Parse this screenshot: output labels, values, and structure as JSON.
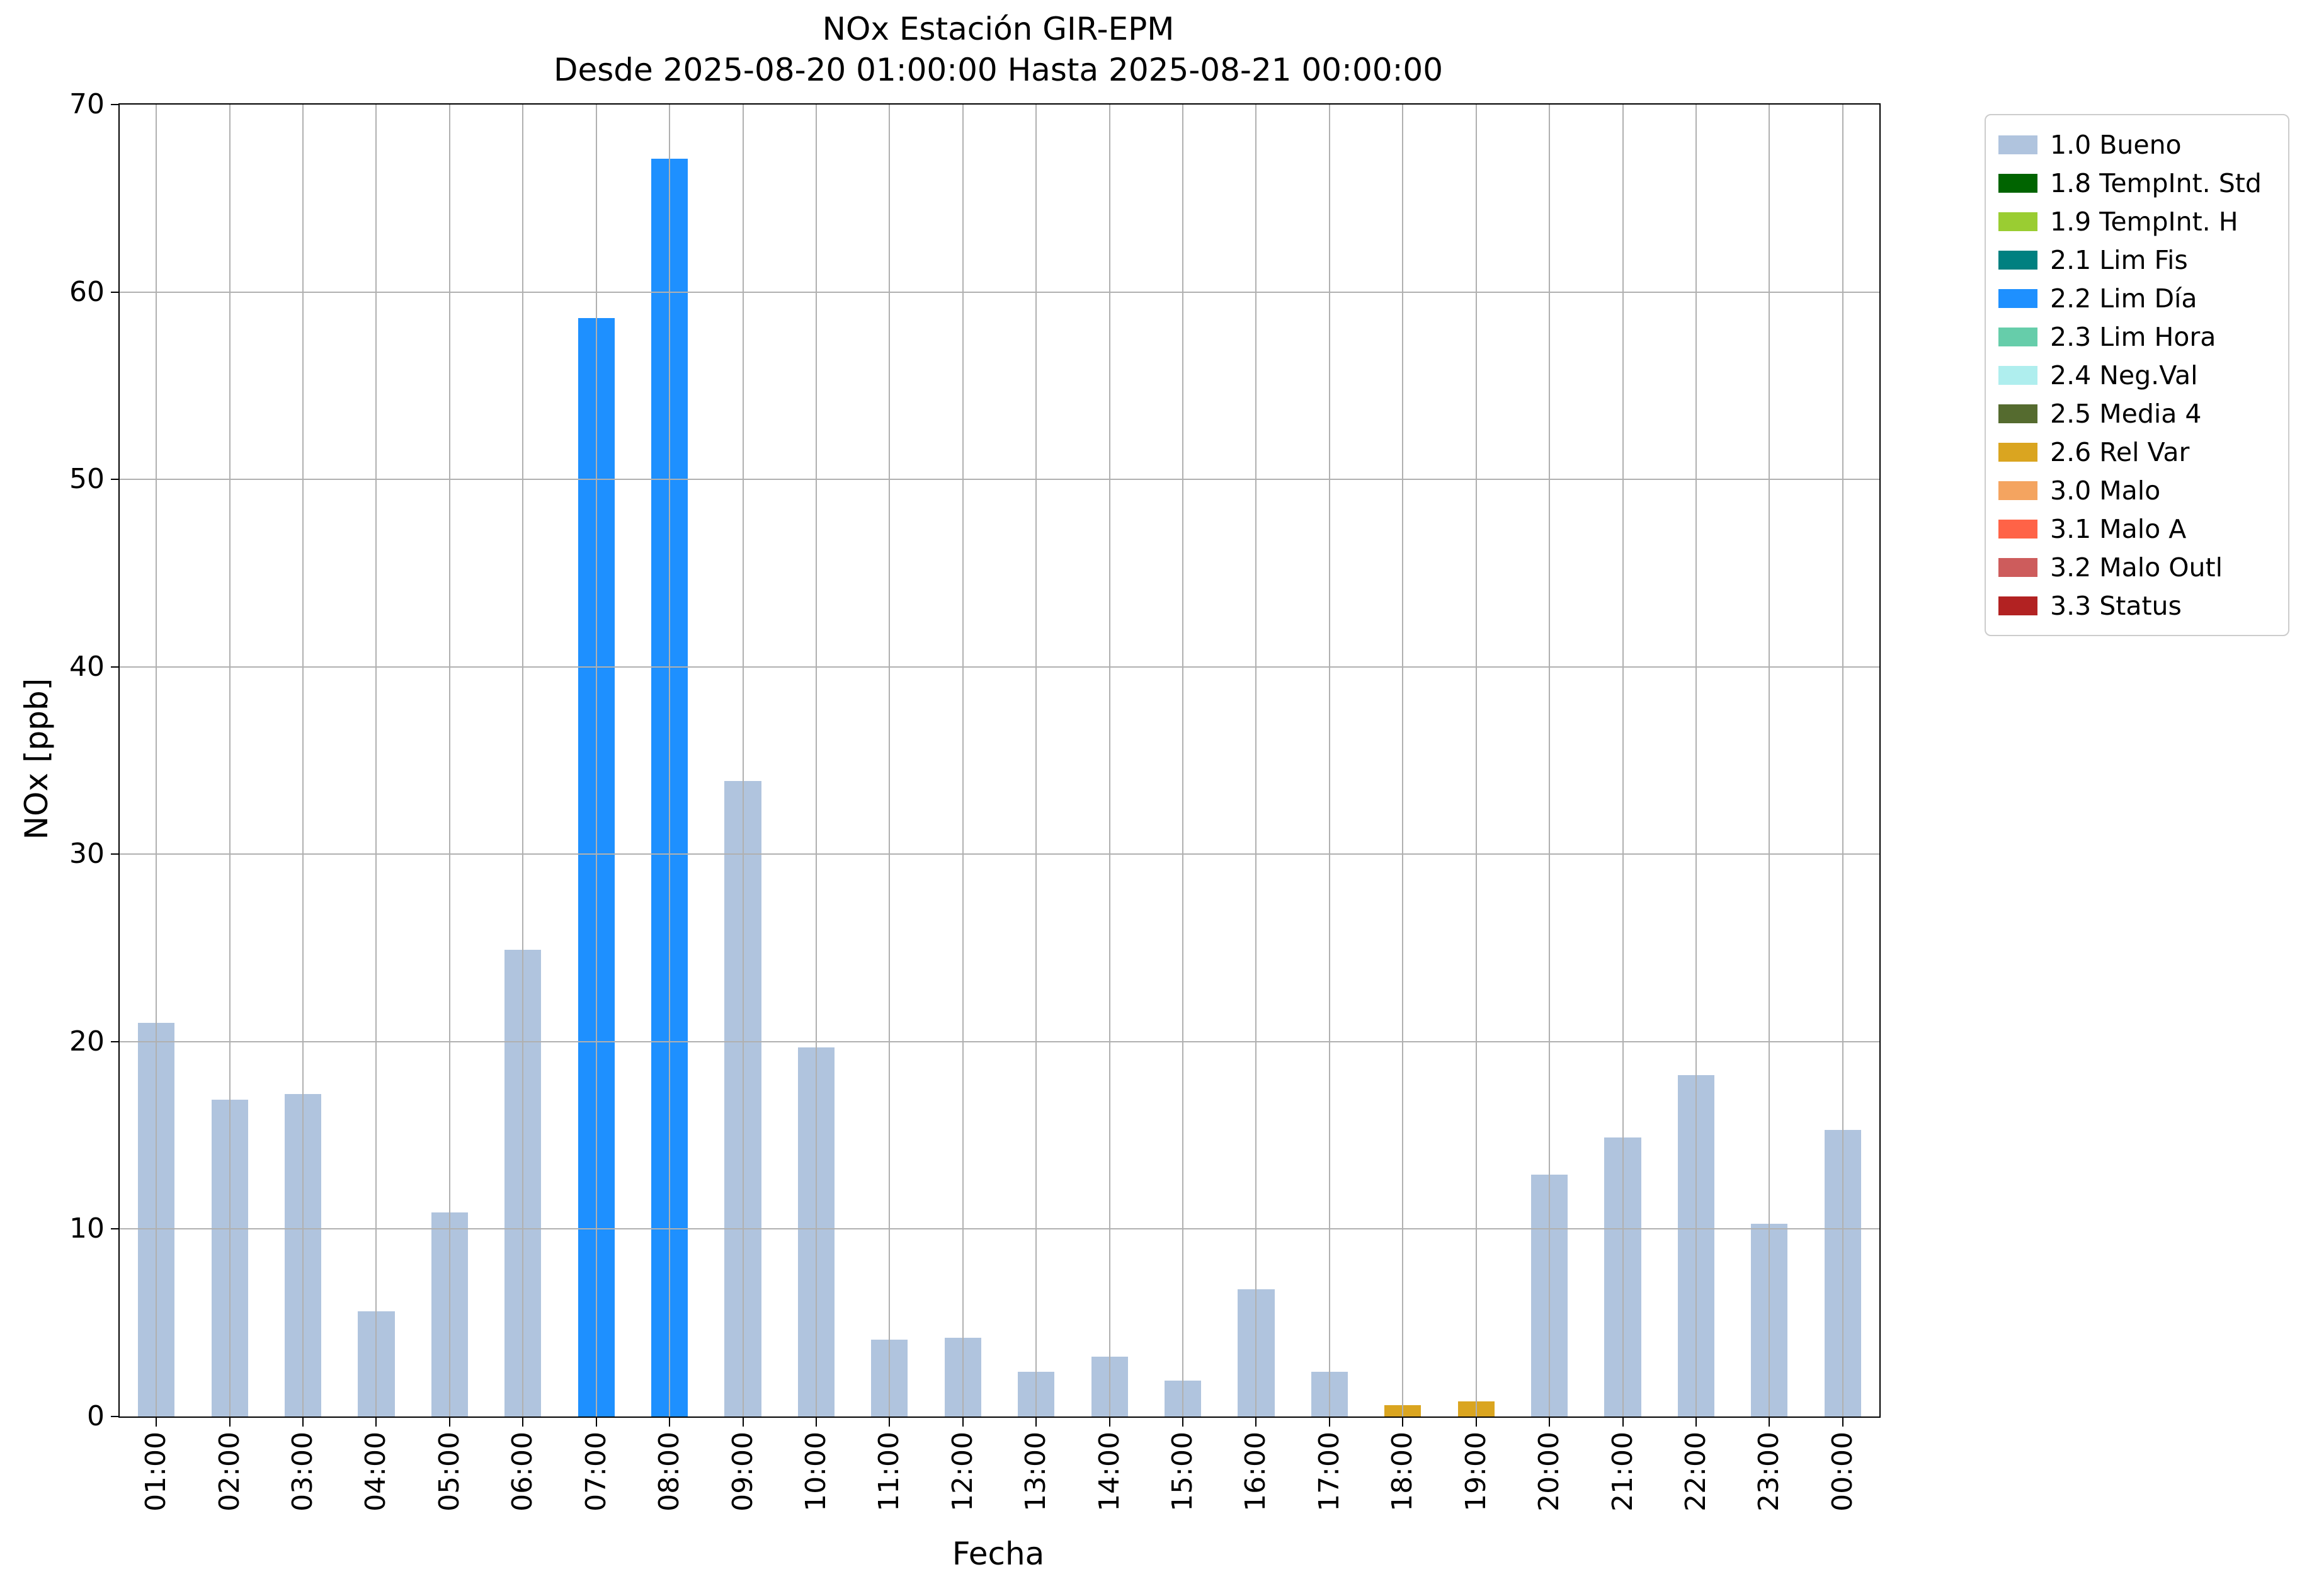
{
  "chart_data": {
    "type": "bar",
    "title": "NOx Estación GIR-EPM",
    "subtitle": "Desde 2025-08-20 01:00:00 Hasta 2025-08-21 00:00:00",
    "xlabel": "Fecha",
    "ylabel": "NOx [ppb]",
    "ylim": [
      0,
      70
    ],
    "yticks": [
      0,
      10,
      20,
      30,
      40,
      50,
      60,
      70
    ],
    "grid": true,
    "categories": [
      "01:00",
      "02:00",
      "03:00",
      "04:00",
      "05:00",
      "06:00",
      "07:00",
      "08:00",
      "09:00",
      "10:00",
      "11:00",
      "12:00",
      "13:00",
      "14:00",
      "15:00",
      "16:00",
      "17:00",
      "18:00",
      "19:00",
      "20:00",
      "21:00",
      "22:00",
      "23:00",
      "00:00"
    ],
    "values": [
      21.0,
      16.9,
      17.2,
      5.6,
      10.9,
      24.9,
      58.6,
      67.1,
      33.9,
      19.7,
      4.1,
      4.2,
      2.4,
      3.2,
      1.9,
      6.8,
      2.4,
      0.6,
      0.8,
      12.9,
      14.9,
      18.2,
      10.3,
      15.3
    ],
    "flags": [
      "1.0",
      "1.0",
      "1.0",
      "1.0",
      "1.0",
      "1.0",
      "2.2",
      "2.2",
      "1.0",
      "1.0",
      "1.0",
      "1.0",
      "1.0",
      "1.0",
      "1.0",
      "1.0",
      "1.0",
      "2.6",
      "2.6",
      "1.0",
      "1.0",
      "1.0",
      "1.0",
      "1.0"
    ],
    "flag_colors": {
      "1.0": "#b0c4de",
      "2.2": "#1e90ff",
      "2.6": "#daa520"
    },
    "legend_position": "outside upper right",
    "legend": [
      {
        "label": "1.0 Bueno",
        "color": "#b0c4de"
      },
      {
        "label": "1.8 TempInt. Std",
        "color": "#006400"
      },
      {
        "label": "1.9 TempInt. H",
        "color": "#9acd32"
      },
      {
        "label": "2.1 Lim Fis",
        "color": "#008080"
      },
      {
        "label": "2.2 Lim Día",
        "color": "#1e90ff"
      },
      {
        "label": "2.3 Lim Hora",
        "color": "#66cdaa"
      },
      {
        "label": "2.4 Neg.Val",
        "color": "#afeeee"
      },
      {
        "label": "2.5 Media 4",
        "color": "#556b2f"
      },
      {
        "label": "2.6 Rel Var",
        "color": "#daa520"
      },
      {
        "label": "3.0 Malo",
        "color": "#f4a460"
      },
      {
        "label": "3.1 Malo A",
        "color": "#ff6347"
      },
      {
        "label": "3.2 Malo Outl",
        "color": "#cd5c5c"
      },
      {
        "label": "3.3 Status",
        "color": "#b22222"
      }
    ]
  }
}
